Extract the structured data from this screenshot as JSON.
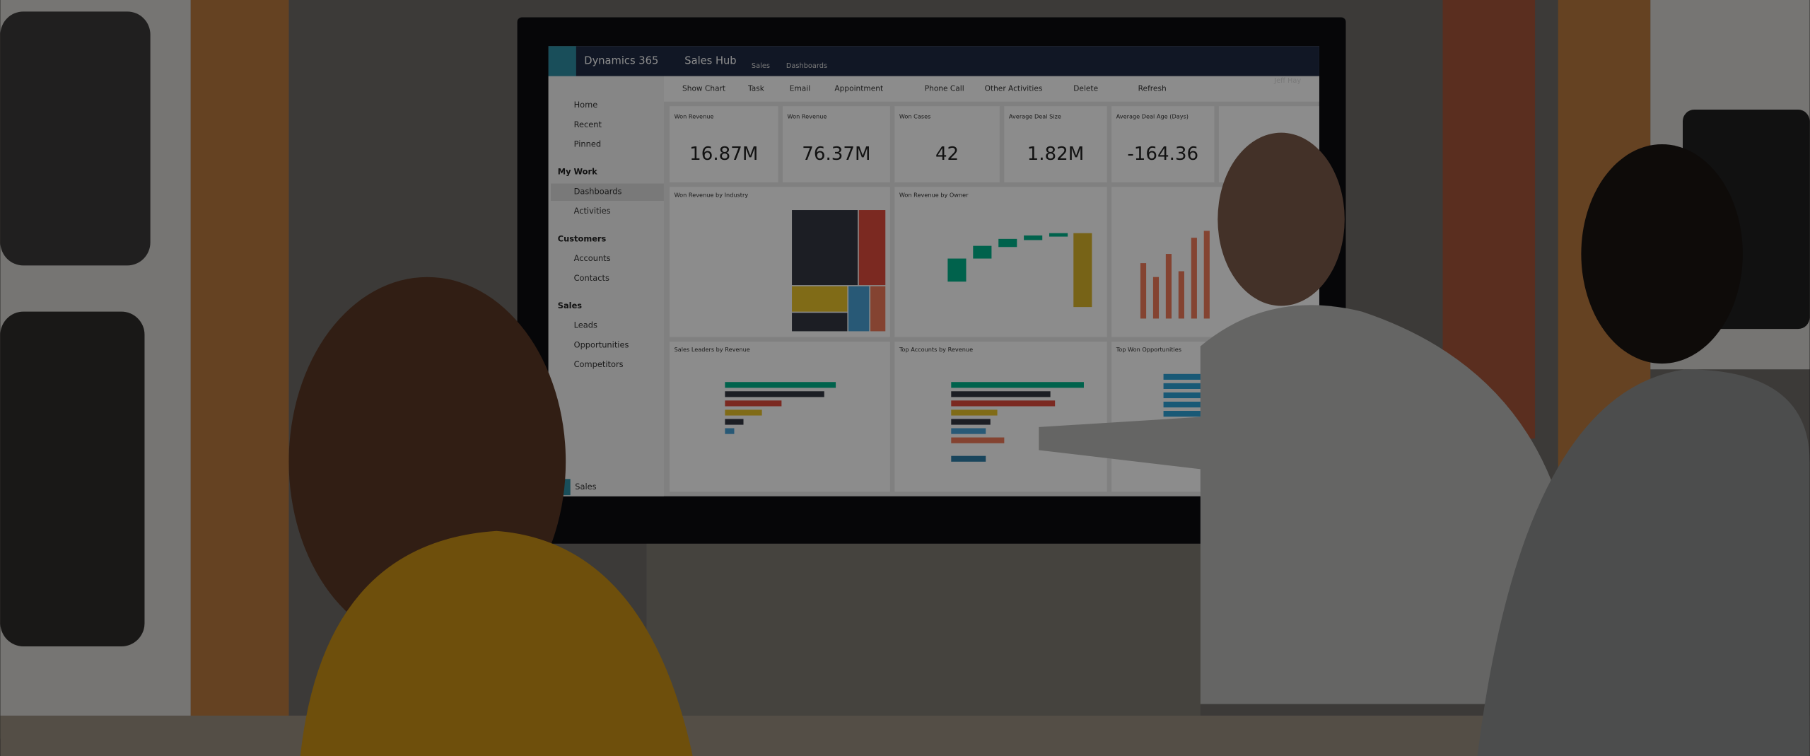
{
  "app": {
    "product": "Dynamics 365",
    "module": "Sales Hub",
    "breadcrumb": [
      "Sales",
      "Dashboards"
    ],
    "user": "Jeff Hay"
  },
  "nav": {
    "items": [
      "Home",
      "Recent",
      "Pinned"
    ],
    "sections": [
      {
        "title": "My Work",
        "items": [
          "Dashboards",
          "Activities"
        ]
      },
      {
        "title": "Customers",
        "items": [
          "Accounts",
          "Contacts"
        ]
      },
      {
        "title": "Sales",
        "items": [
          "Leads",
          "Opportunities",
          "Competitors"
        ]
      }
    ],
    "area": "Sales"
  },
  "commands": [
    "Show Chart",
    "Task",
    "Email",
    "Appointment",
    "Phone Call",
    "Other Activities",
    "Delete",
    "Refresh"
  ],
  "kpis": [
    {
      "title": "Won Revenue",
      "value": "16.87M"
    },
    {
      "title": "Won Revenue",
      "value": "76.37M"
    },
    {
      "title": "Won Cases",
      "value": "42"
    },
    {
      "title": "Average Deal Size",
      "value": "1.82M"
    },
    {
      "title": "Average Deal Age (Days)",
      "value": "-164.36"
    }
  ],
  "charts": [
    "Won Revenue by Industry",
    "Won Revenue by Owner",
    "Sales Leaders by Revenue",
    "Top Accounts by Revenue",
    "Top Won Opportunities"
  ]
}
